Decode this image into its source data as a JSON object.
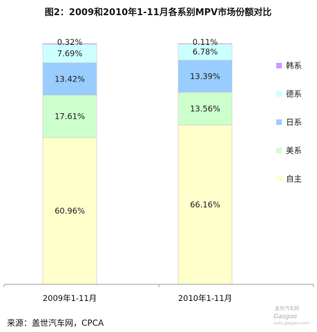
{
  "chart_data": {
    "type": "bar",
    "stacked": true,
    "percent_stacked": true,
    "title": "图2：2009和2010年1-11月各系别MPV市场份额对比",
    "categories": [
      "2009年1-11月",
      "2010年1-11月"
    ],
    "series": [
      {
        "name": "自主",
        "values": [
          60.96,
          66.16
        ],
        "labels": [
          "60.96%",
          "66.16%"
        ],
        "color": "#FFFFCC"
      },
      {
        "name": "美系",
        "values": [
          17.61,
          13.56
        ],
        "labels": [
          "17.61%",
          "13.56%"
        ],
        "color": "#CCFFCC"
      },
      {
        "name": "日系",
        "values": [
          13.42,
          13.39
        ],
        "labels": [
          "13.42%",
          "13.39%"
        ],
        "color": "#99CCFF"
      },
      {
        "name": "德系",
        "values": [
          7.69,
          6.78
        ],
        "labels": [
          "7.69%",
          "6.78%"
        ],
        "color": "#CCFFFF"
      },
      {
        "name": "韩系",
        "values": [
          0.32,
          0.11
        ],
        "labels": [
          "0.32%",
          "0.11%"
        ],
        "color": "#CC99FF"
      }
    ],
    "legend_order": [
      "韩系",
      "德系",
      "日系",
      "美系",
      "自主"
    ],
    "legend_position": "right",
    "ylim": [
      0,
      100
    ],
    "grid": false
  },
  "source_text": "来源：盖世汽车网，CPCA",
  "watermark": {
    "text_top": "盖世汽车网",
    "text_logo": "Gasgoo",
    "text_bottom": "auto.gasgoo.com"
  }
}
